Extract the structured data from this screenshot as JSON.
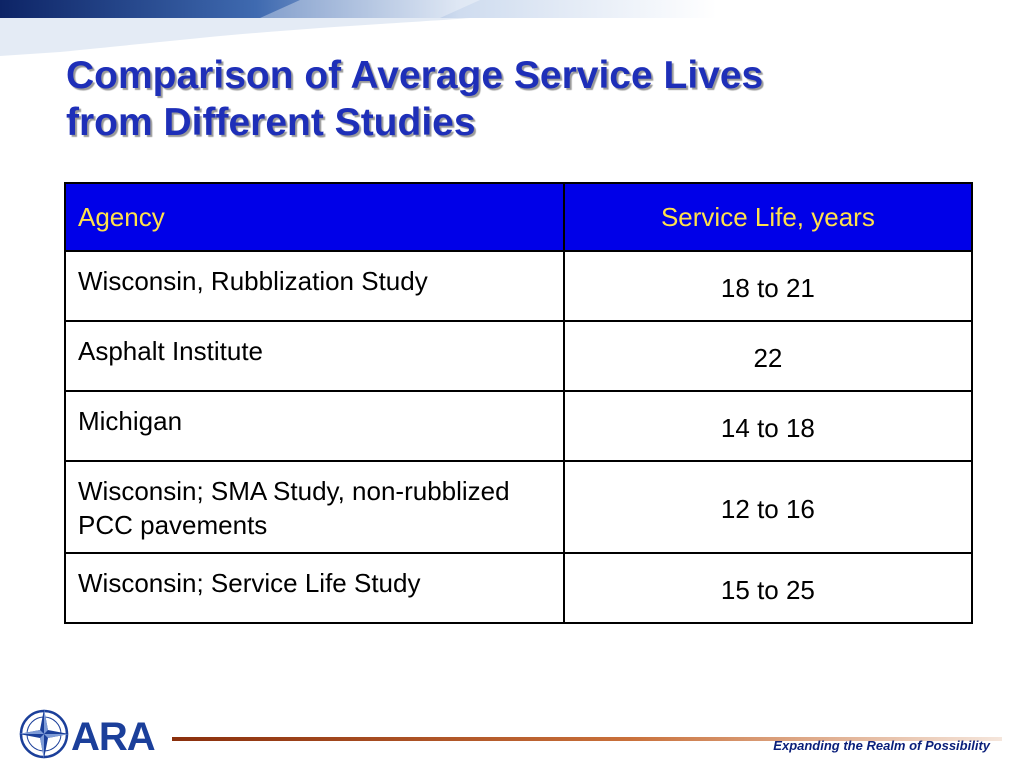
{
  "slide": {
    "title_lines": [
      "Comparison of Average Service Lives",
      "from Different Studies"
    ]
  },
  "table": {
    "headers": [
      "Agency",
      "Service Life, years"
    ],
    "rows": [
      {
        "agency": "Wisconsin, Rubblization Study",
        "service_life": "18 to 21"
      },
      {
        "agency": "Asphalt Institute",
        "service_life": "22"
      },
      {
        "agency": "Michigan",
        "service_life": "14 to 18"
      },
      {
        "agency": "Wisconsin; SMA Study, non-rubblized PCC pavements",
        "service_life": "12 to 16"
      },
      {
        "agency": "Wisconsin; Service Life Study",
        "service_life": "15 to 25"
      }
    ]
  },
  "footer": {
    "logo_text": "ARA",
    "tagline": "Expanding the Realm of Possibility"
  },
  "colors": {
    "title": "#1e2fb8",
    "header_bg": "#0000e8",
    "header_text": "#ffe14a",
    "logo_blue": "#1b3f9a",
    "footer_line": "#9a3a12"
  }
}
